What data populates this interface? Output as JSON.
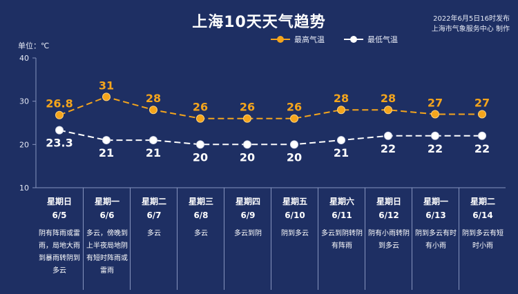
{
  "header": {
    "title": "上海10天天气趋势",
    "release_line1": "2022年6月5日16时发布",
    "release_line2": "上海市气象服务中心 制作",
    "unit": "单位：℃"
  },
  "colors": {
    "background": "#1e2f63",
    "high": "#f5a51c",
    "low": "#ffffff",
    "axis": "#8795bf"
  },
  "chart_data": {
    "type": "line",
    "categories": [
      "星期日 6/5",
      "星期一 6/6",
      "星期二 6/7",
      "星期三 6/8",
      "星期四 6/9",
      "星期五 6/10",
      "星期六 6/11",
      "星期日 6/12",
      "星期一 6/13",
      "星期二 6/14"
    ],
    "series": [
      {
        "name": "最高气温",
        "values": [
          26.8,
          31,
          28,
          26,
          26,
          26,
          28,
          28,
          27,
          27
        ],
        "labels": [
          "26.8",
          "31",
          "28",
          "26",
          "26",
          "26",
          "28",
          "28",
          "27",
          "27"
        ]
      },
      {
        "name": "最低气温",
        "values": [
          23.3,
          21,
          21,
          20,
          20,
          20,
          21,
          22,
          22,
          22
        ],
        "labels": [
          "23.3",
          "21",
          "21",
          "20",
          "20",
          "20",
          "21",
          "22",
          "22",
          "22"
        ]
      }
    ],
    "yticks": [
      "40",
      "30",
      "20",
      "10"
    ],
    "ylim": [
      10,
      40
    ],
    "grid": false,
    "legend_position": "top"
  },
  "days": [
    {
      "weekday": "星期日",
      "date": "6/5",
      "weather": "阴有阵雨或雷雨，局地大雨到暴雨转阴到多云"
    },
    {
      "weekday": "星期一",
      "date": "6/6",
      "weather": "多云，傍晚到上半夜局地阴有短时阵雨或雷雨"
    },
    {
      "weekday": "星期二",
      "date": "6/7",
      "weather": "多云"
    },
    {
      "weekday": "星期三",
      "date": "6/8",
      "weather": "多云"
    },
    {
      "weekday": "星期四",
      "date": "6/9",
      "weather": "多云到阴"
    },
    {
      "weekday": "星期五",
      "date": "6/10",
      "weather": "阴到多云"
    },
    {
      "weekday": "星期六",
      "date": "6/11",
      "weather": "多云到阴转阴有阵雨"
    },
    {
      "weekday": "星期日",
      "date": "6/12",
      "weather": "阴有小雨转阴到多云"
    },
    {
      "weekday": "星期一",
      "date": "6/13",
      "weather": "阴到多云有时有小雨"
    },
    {
      "weekday": "星期二",
      "date": "6/14",
      "weather": "阴到多云有短时小雨"
    }
  ]
}
